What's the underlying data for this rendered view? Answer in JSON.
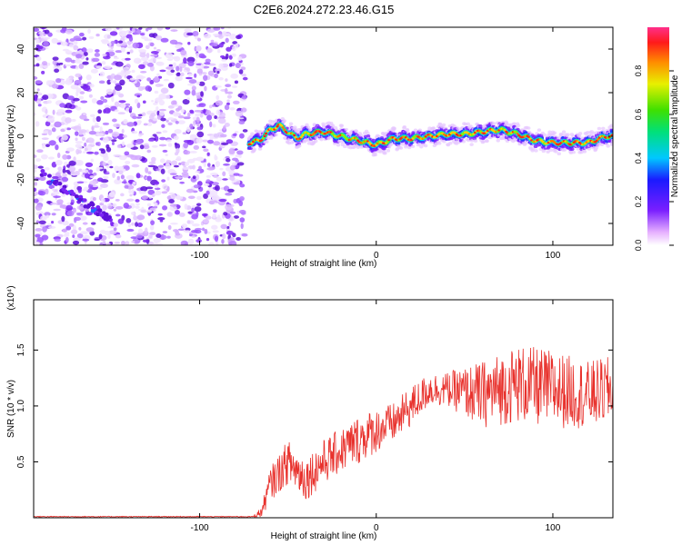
{
  "title": "C2E6.2024.272.23.46.G15",
  "chart_data": [
    {
      "type": "heatmap",
      "xlabel": "Height of straight line (km)",
      "ylabel": "Frequency (Hz)",
      "xlim": [
        -194,
        134
      ],
      "ylim": [
        -50,
        50
      ],
      "x_ticks": [
        -100,
        0,
        100
      ],
      "y_ticks": [
        -40,
        -20,
        0,
        20,
        40
      ],
      "colorbar": {
        "label": "Normalized spectral amplitude",
        "range": [
          0.0,
          1.0
        ],
        "ticks": [
          0.0,
          0.2,
          0.4,
          0.6,
          0.8
        ]
      },
      "track": {
        "x": [
          -72,
          -66,
          -60,
          -55,
          -50,
          -45,
          -40,
          -30,
          -20,
          -10,
          0,
          10,
          20,
          30,
          40,
          50,
          60,
          70,
          80,
          90,
          100,
          110,
          120,
          130
        ],
        "y": [
          -3,
          -2,
          3,
          5,
          2,
          -1,
          1,
          2,
          0,
          -2,
          -4,
          -1,
          -1,
          0,
          1,
          1,
          2,
          3,
          1,
          -2,
          -3,
          -3,
          -3,
          0
        ]
      },
      "diagonal_streak": {
        "x": [
          -190,
          -150
        ],
        "y": [
          -17,
          -38
        ]
      }
    },
    {
      "type": "line",
      "xlabel": "Height of straight line (km)",
      "ylabel": "SNR (10 * v/v)",
      "y_multiplier": "(x10⁴)",
      "xlim": [
        -194,
        134
      ],
      "ylim": [
        0,
        1.95
      ],
      "x_ticks": [
        -100,
        0,
        100
      ],
      "y_ticks": [
        0.5,
        1.0,
        1.5
      ],
      "y_tick_labels": [
        "0.5",
        "1.0",
        "1.5"
      ],
      "series": [
        {
          "color": "#e8312c",
          "envelope_x": [
            -194,
            -70,
            -65,
            -60,
            -50,
            -40,
            -30,
            -20,
            -10,
            0,
            10,
            20,
            30,
            40,
            60,
            80,
            100,
            120,
            134
          ],
          "envelope_y": [
            0.01,
            0.01,
            0.05,
            0.3,
            0.5,
            0.35,
            0.5,
            0.6,
            0.7,
            0.78,
            0.85,
            1.0,
            1.15,
            1.15,
            1.1,
            1.2,
            1.15,
            1.1,
            1.15
          ],
          "noise_amp": [
            0.004,
            0.004,
            0.05,
            0.15,
            0.2,
            0.2,
            0.2,
            0.2,
            0.22,
            0.2,
            0.18,
            0.18,
            0.15,
            0.15,
            0.3,
            0.35,
            0.35,
            0.3,
            0.3
          ]
        }
      ]
    }
  ]
}
